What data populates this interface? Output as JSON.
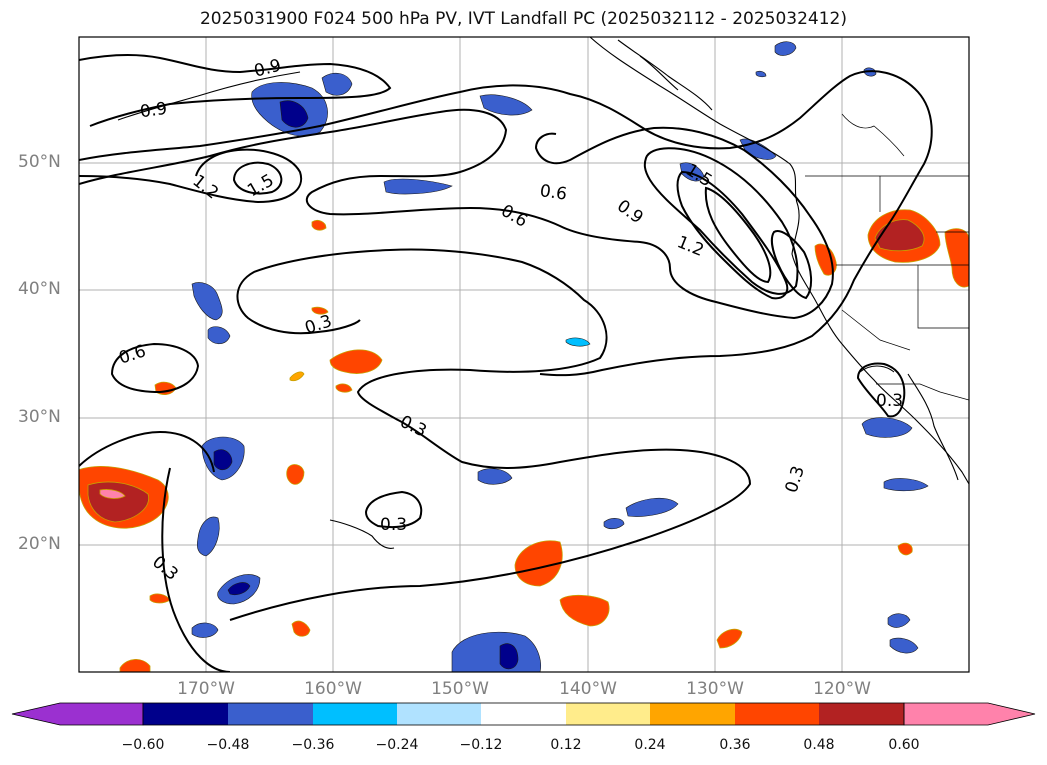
{
  "title": "2025031900 F024 500 hPa PV, IVT Landfall PC (2025032112 - 2025032412)",
  "lat_labels": [
    "50°N",
    "40°N",
    "30°N",
    "20°N"
  ],
  "lon_labels": [
    "170°W",
    "160°W",
    "150°W",
    "140°W",
    "130°W",
    "120°W"
  ],
  "contour_labels": [
    "0.9",
    "0.9",
    "1.2",
    "1.5",
    "0.6",
    "0.6",
    "0.9",
    "1.2",
    "1.5",
    "0.3",
    "0.6",
    "0.3",
    "0.3",
    "0.3",
    "0.3",
    "0.3"
  ],
  "colorbar": {
    "ticks": [
      "−0.60",
      "−0.48",
      "−0.36",
      "−0.24",
      "−0.12",
      "0.12",
      "0.24",
      "0.36",
      "0.48",
      "0.60"
    ],
    "colors": [
      "#9b30d0",
      "#00008b",
      "#3a5fcd",
      "#00bfff",
      "#b0e2ff",
      "#ffffff",
      "#ffec8b",
      "#ffa500",
      "#ff4500",
      "#b22222",
      "#ff82ab"
    ]
  }
}
